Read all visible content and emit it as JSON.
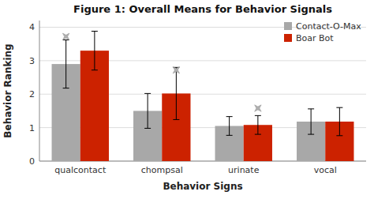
{
  "chart_data": {
    "type": "bar",
    "title": "Figure 1:  Overall Means for Behavior Signals",
    "xlabel": "Behavior Signs",
    "ylabel": "Behavior Ranking",
    "categories": [
      "qualcontact",
      "chompsal",
      "urinate",
      "vocal"
    ],
    "series": [
      {
        "name": "Contact-O-Max",
        "color": "#a8a8a8",
        "values": [
          2.9,
          1.5,
          1.05,
          1.18
        ],
        "errors": [
          0.72,
          0.52,
          0.28,
          0.38
        ]
      },
      {
        "name": "Boar Bot",
        "color": "#cc2200",
        "values": [
          3.3,
          2.02,
          1.08,
          1.18
        ],
        "errors": [
          0.58,
          0.78,
          0.28,
          0.42
        ]
      }
    ],
    "stars": [
      {
        "category": "qualcontact",
        "series": "Contact-O-Max",
        "y": 3.72
      },
      {
        "category": "chompsal",
        "series": "Boar Bot",
        "y": 2.72
      },
      {
        "category": "urinate",
        "series": "Boar Bot",
        "y": 1.58
      }
    ],
    "ylim": [
      0,
      4.2
    ],
    "yticks": [
      0,
      1,
      2,
      3,
      4
    ],
    "grid": true,
    "legend": "upper right"
  }
}
